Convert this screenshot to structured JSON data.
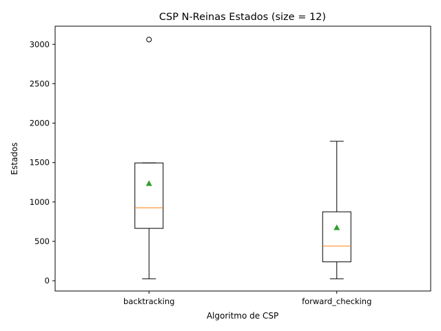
{
  "chart_data": {
    "type": "box",
    "title": "CSP N-Reinas Estados (size = 12)",
    "xlabel": "Algoritmo de CSP",
    "ylabel": "Estados",
    "ylim": [
      -130,
      3230
    ],
    "yticks": [
      0,
      500,
      1000,
      1500,
      2000,
      2500,
      3000
    ],
    "grid": false,
    "categories": [
      "backtracking",
      "forward_checking"
    ],
    "boxes": [
      {
        "name": "backtracking",
        "whisker_low": 25,
        "q1": 665,
        "median": 925,
        "q3": 1495,
        "whisker_high": 1495,
        "mean": 1235,
        "outliers": [
          3060
        ]
      },
      {
        "name": "forward_checking",
        "whisker_low": 25,
        "q1": 240,
        "median": 440,
        "q3": 875,
        "whisker_high": 1770,
        "mean": 675,
        "outliers": []
      }
    ],
    "colors": {
      "box": "#000000",
      "median": "#ff7f0e",
      "mean": "#2ca02c",
      "outlier": "#000000"
    }
  }
}
